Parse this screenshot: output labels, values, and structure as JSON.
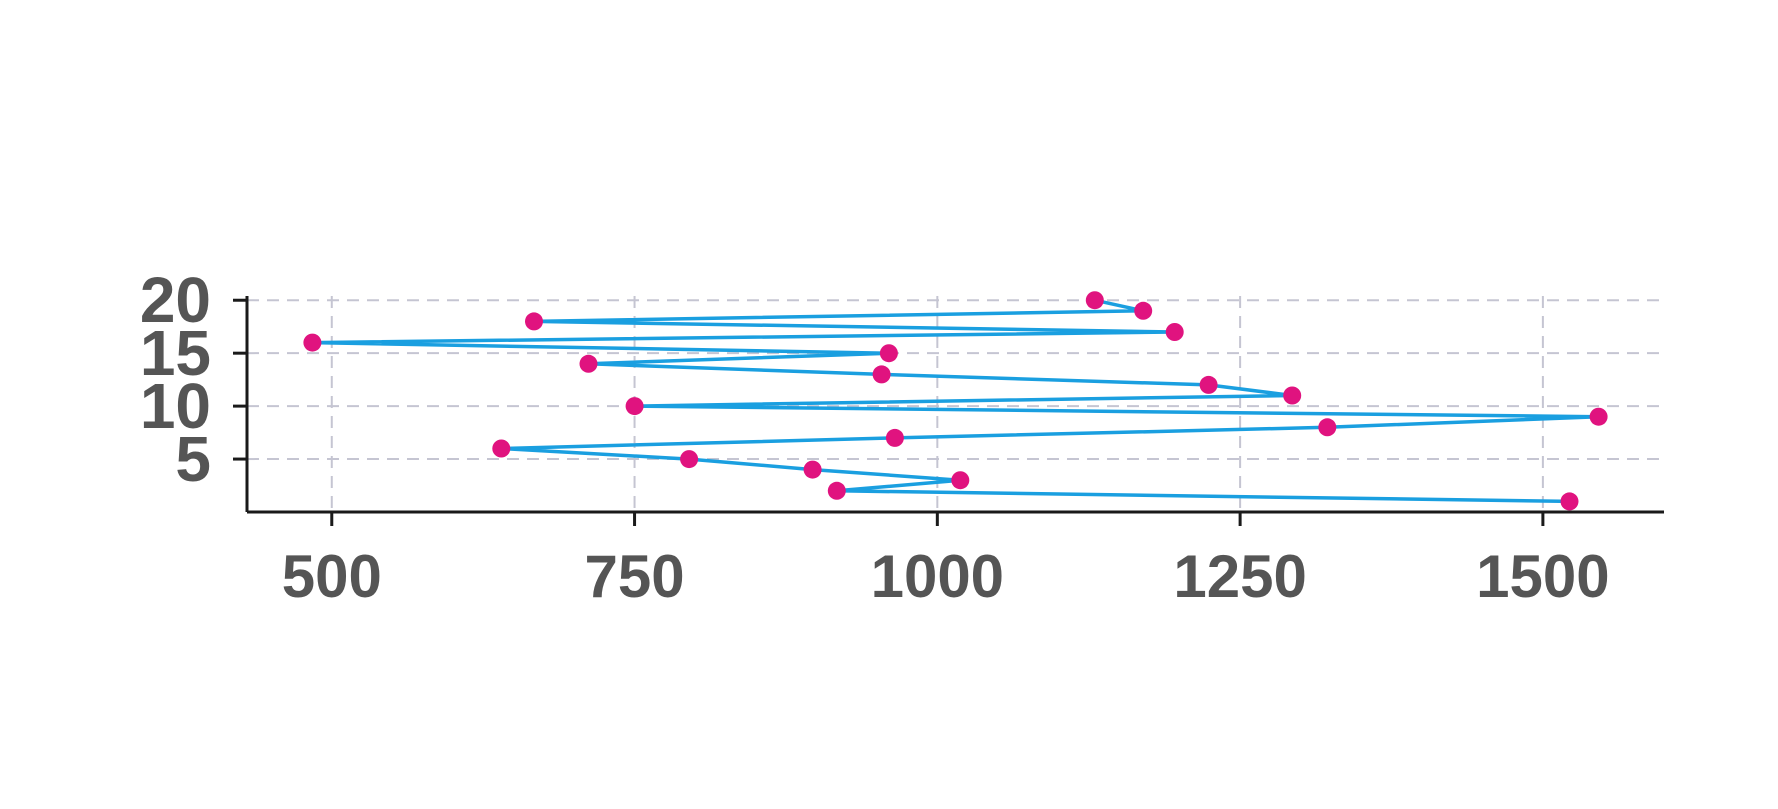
{
  "chart_data": {
    "type": "line",
    "title": "",
    "xlabel": "",
    "ylabel": "",
    "xlim": [
      430,
      1600
    ],
    "ylim": [
      0,
      20.4
    ],
    "x_ticks": [
      500,
      750,
      1000,
      1250,
      1500
    ],
    "y_ticks": [
      5,
      10,
      15,
      20
    ],
    "x_tick_labels": [
      "500",
      "750",
      "1000",
      "1250",
      "1500"
    ],
    "y_tick_labels": [
      "5",
      "10",
      "15",
      "20"
    ],
    "grid": true,
    "grid_style": "dashed",
    "colors": {
      "line": "#1a9fe0",
      "marker": "#e0137f",
      "grid": "#c5c5d2",
      "axis": "#1a1a1a",
      "tick_label": "#555555"
    },
    "series": [
      {
        "points": [
          {
            "x": 1522,
            "y": 1
          },
          {
            "x": 917,
            "y": 2
          },
          {
            "x": 1019,
            "y": 3
          },
          {
            "x": 897,
            "y": 4
          },
          {
            "x": 795,
            "y": 5
          },
          {
            "x": 640,
            "y": 6
          },
          {
            "x": 965,
            "y": 7
          },
          {
            "x": 1322,
            "y": 8
          },
          {
            "x": 1546,
            "y": 9
          },
          {
            "x": 750,
            "y": 10
          },
          {
            "x": 1293,
            "y": 11
          },
          {
            "x": 1224,
            "y": 12
          },
          {
            "x": 954,
            "y": 13
          },
          {
            "x": 712,
            "y": 14
          },
          {
            "x": 960,
            "y": 15
          },
          {
            "x": 484,
            "y": 16
          },
          {
            "x": 1196,
            "y": 17
          },
          {
            "x": 667,
            "y": 18
          },
          {
            "x": 1170,
            "y": 19
          },
          {
            "x": 1130,
            "y": 20
          }
        ]
      }
    ]
  }
}
